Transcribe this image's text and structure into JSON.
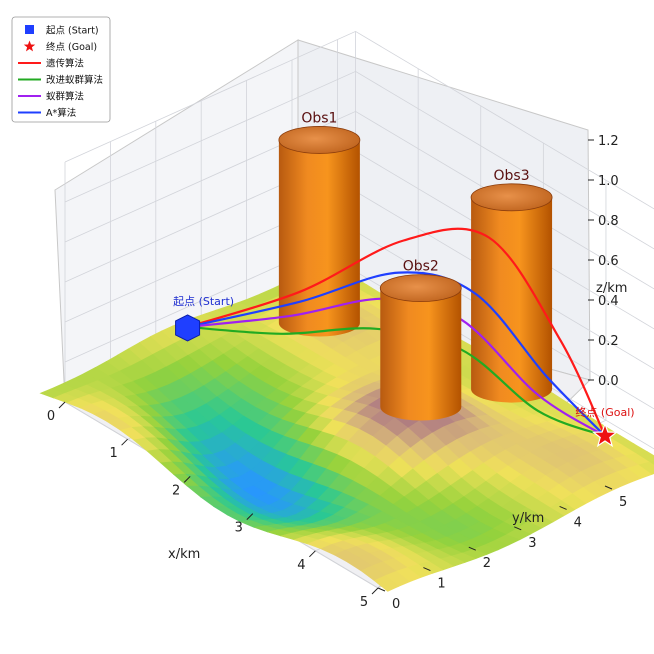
{
  "chart_data": {
    "type": "surface3d",
    "title": "",
    "xlabel": "x/km",
    "ylabel": "y/km",
    "zlabel": "z/km",
    "xlim": [
      0,
      5
    ],
    "ylim": [
      0,
      5
    ],
    "zlim": [
      0,
      1.2
    ],
    "x_ticks": [
      "0",
      "1",
      "2",
      "3",
      "4",
      "5"
    ],
    "y_ticks": [
      "0",
      "1",
      "2",
      "3",
      "4",
      "5"
    ],
    "z_ticks": [
      "0.0",
      "0.2",
      "0.4",
      "0.6",
      "0.8",
      "1.0",
      "1.2"
    ],
    "grid": true,
    "legend_position": "top-left",
    "legend": [
      {
        "label": "起点 (Start)",
        "marker": "square",
        "color": "#1f3fff"
      },
      {
        "label": "终点 (Goal)",
        "marker": "star",
        "color": "#ee1111"
      },
      {
        "label": "遗传算法",
        "marker": "line",
        "color": "#ff1a1a"
      },
      {
        "label": "改进蚁群算法",
        "marker": "line",
        "color": "#22aa22"
      },
      {
        "label": "蚁群算法",
        "marker": "line",
        "color": "#a020f0"
      },
      {
        "label": "A*算法",
        "marker": "line",
        "color": "#1f3fff"
      }
    ],
    "start": {
      "label": "起点 (Start)",
      "x": 0,
      "y": 2.7,
      "z": 0.1
    },
    "goal": {
      "label": "终点 (Goal)",
      "x": 5,
      "y": 5,
      "z": 0.25
    },
    "obstacles": [
      {
        "name": "Obs1",
        "x": 0.8,
        "y": 4.5,
        "radius": 0.45,
        "height": 1.0
      },
      {
        "name": "Obs2",
        "x": 3.0,
        "y": 3.7,
        "radius": 0.45,
        "height": 0.75
      },
      {
        "name": "Obs3",
        "x": 3.0,
        "y": 5.7,
        "radius": 0.45,
        "height": 1.0
      }
    ],
    "series": [
      {
        "name": "遗传算法",
        "color": "#ff1a1a",
        "x": [
          0,
          1.0,
          2.0,
          3.0,
          4.0,
          5.0
        ],
        "y": [
          2.7,
          3.8,
          4.7,
          5.2,
          5.4,
          5.0
        ],
        "z": [
          0.1,
          0.35,
          0.7,
          0.85,
          0.5,
          0.25
        ]
      },
      {
        "name": "A*算法",
        "color": "#1f3fff",
        "x": [
          0,
          1.0,
          2.0,
          3.0,
          4.0,
          5.0
        ],
        "y": [
          2.7,
          3.8,
          4.6,
          4.9,
          5.1,
          5.0
        ],
        "z": [
          0.1,
          0.3,
          0.55,
          0.6,
          0.35,
          0.25
        ]
      },
      {
        "name": "蚁群算法",
        "color": "#a020f0",
        "x": [
          0,
          1.0,
          2.0,
          3.0,
          4.0,
          5.0
        ],
        "y": [
          2.7,
          3.6,
          4.3,
          4.6,
          4.9,
          5.0
        ],
        "z": [
          0.1,
          0.25,
          0.45,
          0.5,
          0.28,
          0.25
        ]
      },
      {
        "name": "改进蚁群算法",
        "color": "#22aa22",
        "x": [
          0,
          1.0,
          2.0,
          3.0,
          4.0,
          5.0
        ],
        "y": [
          2.7,
          3.4,
          4.1,
          4.6,
          4.9,
          5.0
        ],
        "z": [
          0.1,
          0.18,
          0.32,
          0.35,
          0.2,
          0.25
        ]
      }
    ]
  }
}
